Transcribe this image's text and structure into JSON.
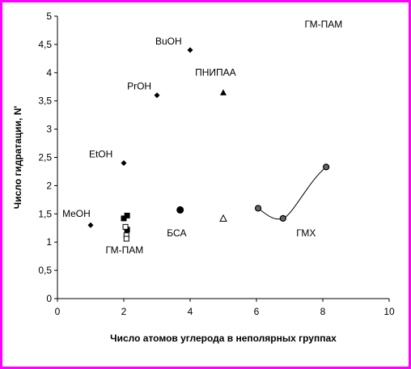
{
  "chart_data": {
    "type": "scatter",
    "title": "",
    "xlabel": "Число атомов углерода в неполярных группах",
    "ylabel": "Число гидратации, N'",
    "xlim": [
      0,
      10
    ],
    "ylim": [
      0,
      5
    ],
    "x_ticks": [
      0,
      2,
      4,
      6,
      8,
      10
    ],
    "y_ticks": [
      "0",
      "0,5",
      "1",
      "1,5",
      "2",
      "2,5",
      "3",
      "3,5",
      "4",
      "4,5",
      "5"
    ],
    "grid": false,
    "legend": "none",
    "colors": {
      "frame": "#ff00ff",
      "marker": "#000000",
      "gmx_marker_fill": "#666666"
    },
    "series": [
      {
        "marker": "diamond",
        "points": [
          {
            "x": 1,
            "y": 1.3,
            "label": "MeOH"
          },
          {
            "x": 2,
            "y": 2.4,
            "label": "EtOH"
          },
          {
            "x": 3,
            "y": 3.6,
            "label": "PrOH"
          },
          {
            "x": 4,
            "y": 4.4,
            "label": "BuOH"
          }
        ]
      },
      {
        "marker": "triangle-filled",
        "points": [
          {
            "x": 5,
            "y": 3.65,
            "label": "ПНИПАА"
          }
        ]
      },
      {
        "marker": "triangle-open",
        "points": [
          {
            "x": 5,
            "y": 1.42
          }
        ]
      },
      {
        "marker": "circle-large",
        "points": [
          {
            "x": 3.7,
            "y": 1.57,
            "label": "БСА"
          }
        ]
      },
      {
        "marker": "square-filled",
        "points": [
          {
            "x": 2,
            "y": 1.42
          },
          {
            "x": 2.1,
            "y": 1.47
          },
          {
            "x": 2.1,
            "y": 1.22
          }
        ]
      },
      {
        "marker": "square-open",
        "points": [
          {
            "x": 2.05,
            "y": 1.27
          },
          {
            "x": 2.08,
            "y": 1.12
          },
          {
            "x": 2.08,
            "y": 1.06
          }
        ]
      },
      {
        "marker": "circle",
        "line": "smooth",
        "points": [
          {
            "x": 6.05,
            "y": 1.6
          },
          {
            "x": 6.8,
            "y": 1.42
          },
          {
            "x": 8.1,
            "y": 2.33
          }
        ]
      }
    ],
    "annotations": [
      {
        "text": "MeOH",
        "x": 0.15,
        "y": 1.45
      },
      {
        "text": "EtOH",
        "x": 0.95,
        "y": 2.5
      },
      {
        "text": "PrOH",
        "x": 2.1,
        "y": 3.7
      },
      {
        "text": "BuOH",
        "x": 2.95,
        "y": 4.5
      },
      {
        "text": "ПНИПАА",
        "x": 4.15,
        "y": 3.95
      },
      {
        "text": "ГМ-ПАМ",
        "x": 1.45,
        "y": 0.8
      },
      {
        "text": "ГМ-ПАМ",
        "x": 7.45,
        "y": 4.8
      },
      {
        "text": "БСА",
        "x": 3.3,
        "y": 1.1
      },
      {
        "text": "ГМХ",
        "x": 7.2,
        "y": 1.1
      }
    ]
  }
}
